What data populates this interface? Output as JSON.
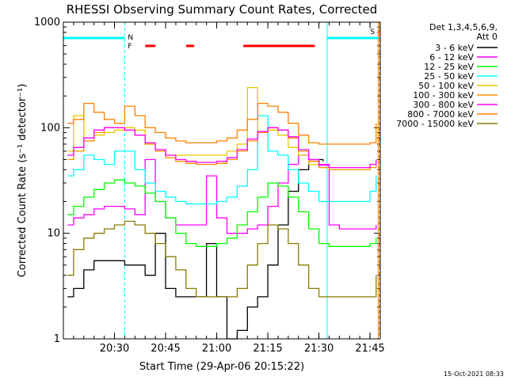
{
  "chart_data": {
    "type": "line",
    "title": "RHESSI Observing Summary Count Rates, Corrected",
    "xlabel": "Start Time (29-Apr-06 20:15:22)",
    "ylabel": "Corrected Count Rate (s⁻¹ detector⁻¹)",
    "timestamp": "15-Oct-2021 08:33",
    "y_scale": "log",
    "ylim": [
      1,
      1000
    ],
    "xlim_minutes": [
      20.25,
      21.8
    ],
    "x_ticks": [
      {
        "label": "20:30",
        "t": 20.5
      },
      {
        "label": "20:45",
        "t": 20.75
      },
      {
        "label": "21:00",
        "t": 21.0
      },
      {
        "label": "21:15",
        "t": 21.25
      },
      {
        "label": "21:30",
        "t": 21.5
      },
      {
        "label": "21:45",
        "t": 21.75
      }
    ],
    "y_ticks": [
      {
        "label": "1",
        "v": 1
      },
      {
        "label": "10",
        "v": 10
      },
      {
        "label": "100",
        "v": 100
      },
      {
        "label": "1000",
        "v": 1000
      }
    ],
    "legend": {
      "header_lines": [
        "Det 1,3,4,5,6,9,",
        "Att 0"
      ],
      "placement": "right",
      "entries": [
        {
          "label": "3 - 6 keV",
          "color": "#000000"
        },
        {
          "label": "6 - 12 keV",
          "color": "#ff00ff"
        },
        {
          "label": "12 - 25 keV",
          "color": "#00ff00"
        },
        {
          "label": "25 - 50 keV",
          "color": "#00ffff"
        },
        {
          "label": "50 - 100 keV",
          "color": "#e6c800"
        },
        {
          "label": "100 - 300 keV",
          "color": "#ff9000"
        },
        {
          "label": "300 - 800 keV",
          "color": "#ff00ff"
        },
        {
          "label": "800 - 7000 keV",
          "color": "#ff8000"
        },
        {
          "label": "7000 - 15000 keV",
          "color": "#8a7a00"
        }
      ]
    },
    "flags": {
      "night_label": "N",
      "flare_label": "F",
      "saa_label": "S",
      "night_intervals": [
        [
          20.25,
          20.55
        ],
        [
          21.54,
          21.8
        ]
      ],
      "flare_intervals": [
        [
          20.65,
          20.7
        ],
        [
          20.85,
          20.89
        ],
        [
          21.13,
          21.48
        ]
      ],
      "saa_interval": [
        21.79,
        21.8
      ]
    },
    "series": [
      {
        "label": "3 - 6 keV",
        "color": "#000000",
        "x": [
          20.27,
          20.3,
          20.35,
          20.4,
          20.45,
          20.5,
          20.55,
          20.6,
          20.65,
          20.7,
          20.75,
          20.8,
          20.85,
          20.9,
          20.95,
          21.0,
          21.05,
          21.1,
          21.15,
          21.2,
          21.25,
          21.3,
          21.35,
          21.4,
          21.45,
          21.5,
          21.52
        ],
        "y": [
          2.5,
          3,
          4.5,
          5.5,
          5.5,
          5.5,
          5,
          5,
          4,
          10,
          3,
          2.5,
          2.5,
          2.5,
          8,
          2.5,
          1,
          1.2,
          2,
          2.5,
          5,
          12,
          25,
          40,
          48,
          50,
          48
        ]
      },
      {
        "label": "6 - 12 keV",
        "color": "#ff00ff",
        "x": [
          20.27,
          20.3,
          20.35,
          20.4,
          20.45,
          20.5,
          20.55,
          20.6,
          20.65,
          20.7,
          20.75,
          20.8,
          20.85,
          20.9,
          20.95,
          21.0,
          21.05,
          21.1,
          21.15,
          21.2,
          21.25,
          21.3,
          21.35,
          21.4,
          21.45,
          21.5,
          21.55,
          21.6,
          21.65,
          21.7,
          21.75,
          21.78
        ],
        "y": [
          12,
          14,
          15,
          17,
          18,
          18,
          17,
          15,
          50,
          20,
          14,
          12,
          12,
          12,
          35,
          14,
          10,
          10,
          11,
          12,
          18,
          30,
          45,
          55,
          50,
          45,
          12,
          11,
          11,
          11,
          11,
          12
        ]
      },
      {
        "label": "12 - 25 keV",
        "color": "#00ff00",
        "x": [
          20.27,
          20.3,
          20.35,
          20.4,
          20.45,
          20.5,
          20.55,
          20.6,
          20.65,
          20.7,
          20.75,
          20.8,
          20.85,
          20.9,
          20.95,
          21.0,
          21.05,
          21.1,
          21.15,
          21.2,
          21.25,
          21.3,
          21.35,
          21.4,
          21.45,
          21.5,
          21.55,
          21.6,
          21.65,
          21.7,
          21.75,
          21.78
        ],
        "y": [
          15,
          18,
          22,
          26,
          30,
          32,
          30,
          28,
          24,
          20,
          14,
          10,
          8,
          7.5,
          7.5,
          8,
          9,
          12,
          16,
          22,
          30,
          28,
          22,
          16,
          11,
          8,
          7.5,
          7.5,
          7.5,
          7.5,
          8,
          9
        ]
      },
      {
        "label": "25 - 50 keV",
        "color": "#00ffff",
        "x": [
          20.27,
          20.3,
          20.35,
          20.4,
          20.45,
          20.5,
          20.55,
          20.6,
          20.65,
          20.7,
          20.75,
          20.8,
          20.85,
          20.9,
          20.95,
          21.0,
          21.05,
          21.1,
          21.15,
          21.2,
          21.25,
          21.3,
          21.35,
          21.4,
          21.45,
          21.5,
          21.55,
          21.6,
          21.65,
          21.7,
          21.75,
          21.78
        ],
        "y": [
          35,
          40,
          55,
          50,
          45,
          60,
          60,
          40,
          30,
          25,
          22,
          20,
          19,
          19,
          19,
          20,
          22,
          28,
          40,
          130,
          60,
          55,
          40,
          30,
          25,
          20,
          20,
          20,
          20,
          20,
          25,
          35
        ]
      },
      {
        "label": "50 - 100 keV",
        "color": "#e6c800",
        "x": [
          20.27,
          20.3,
          20.35,
          20.4,
          20.45,
          20.5,
          20.55,
          20.6,
          20.65,
          20.7,
          20.75,
          20.8,
          20.85,
          20.9,
          20.95,
          21.0,
          21.05,
          21.1,
          21.15,
          21.2,
          21.25,
          21.3,
          21.35,
          21.4,
          21.45,
          21.5,
          21.55,
          21.6,
          21.65,
          21.7,
          21.75,
          21.78
        ],
        "y": [
          60,
          130,
          75,
          85,
          90,
          95,
          100,
          95,
          70,
          60,
          55,
          55,
          55,
          55,
          55,
          55,
          60,
          70,
          240,
          90,
          95,
          85,
          65,
          55,
          45,
          42,
          42,
          42,
          42,
          42,
          45,
          50
        ]
      },
      {
        "label": "100 - 300 keV",
        "color": "#ff9000",
        "x": [
          20.27,
          20.3,
          20.35,
          20.4,
          20.45,
          20.5,
          20.55,
          20.6,
          20.65,
          20.7,
          20.75,
          20.8,
          20.85,
          20.9,
          20.95,
          21.0,
          21.05,
          21.1,
          21.15,
          21.2,
          21.25,
          21.3,
          21.35,
          21.4,
          21.45,
          21.5,
          21.55,
          21.6,
          21.65,
          21.7,
          21.75,
          21.78
        ],
        "y": [
          50,
          60,
          75,
          90,
          100,
          100,
          95,
          85,
          70,
          60,
          52,
          48,
          46,
          45,
          45,
          46,
          50,
          60,
          75,
          90,
          100,
          95,
          80,
          60,
          48,
          42,
          40,
          40,
          40,
          40,
          42,
          45
        ]
      },
      {
        "label": "300 - 800 keV",
        "color": "#ff00ff",
        "x": [
          20.27,
          20.3,
          20.35,
          20.4,
          20.45,
          20.5,
          20.55,
          20.6,
          20.65,
          20.7,
          20.75,
          20.8,
          20.85,
          20.9,
          20.95,
          21.0,
          21.05,
          21.1,
          21.15,
          21.2,
          21.25,
          21.3,
          21.35,
          21.4,
          21.45,
          21.5,
          21.55,
          21.6,
          21.65,
          21.7,
          21.75,
          21.78
        ],
        "y": [
          55,
          65,
          80,
          95,
          100,
          100,
          95,
          85,
          72,
          62,
          55,
          50,
          48,
          47,
          47,
          48,
          52,
          62,
          78,
          92,
          100,
          95,
          82,
          62,
          50,
          44,
          42,
          42,
          42,
          42,
          45,
          50
        ]
      },
      {
        "label": "800 - 7000 keV",
        "color": "#ff8000",
        "x": [
          20.27,
          20.3,
          20.35,
          20.4,
          20.45,
          20.5,
          20.55,
          20.6,
          20.65,
          20.7,
          20.75,
          20.8,
          20.85,
          20.9,
          20.95,
          21.0,
          21.05,
          21.1,
          21.15,
          21.2,
          21.25,
          21.3,
          21.35,
          21.4,
          21.45,
          21.5,
          21.55,
          21.6,
          21.65,
          21.7,
          21.75,
          21.78
        ],
        "y": [
          110,
          120,
          170,
          140,
          120,
          110,
          160,
          130,
          100,
          90,
          80,
          75,
          72,
          72,
          72,
          75,
          80,
          95,
          120,
          170,
          160,
          140,
          110,
          85,
          72,
          70,
          70,
          70,
          70,
          70,
          72,
          110
        ]
      },
      {
        "label": "7000 - 15000 keV",
        "color": "#8a7a00",
        "x": [
          20.27,
          20.3,
          20.35,
          20.4,
          20.45,
          20.5,
          20.55,
          20.6,
          20.65,
          20.7,
          20.75,
          20.8,
          20.85,
          20.9,
          20.95,
          21.0,
          21.05,
          21.1,
          21.15,
          21.2,
          21.25,
          21.3,
          21.35,
          21.4,
          21.45,
          21.5,
          21.55,
          21.6,
          21.65,
          21.7,
          21.75,
          21.78
        ],
        "y": [
          4,
          7,
          9,
          10,
          11,
          12,
          13,
          12,
          10,
          8,
          6,
          4.5,
          3,
          2.5,
          2.5,
          2.5,
          2.5,
          3,
          5,
          8,
          12,
          11,
          8,
          5,
          3,
          2.5,
          2.5,
          2.5,
          2.5,
          2.5,
          2.5,
          4
        ]
      }
    ]
  }
}
